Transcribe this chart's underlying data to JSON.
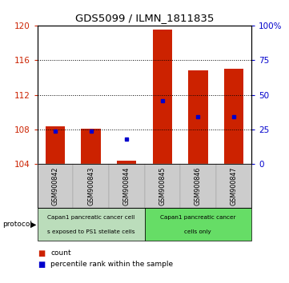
{
  "title": "GDS5099 / ILMN_1811835",
  "samples": [
    "GSM900842",
    "GSM900843",
    "GSM900844",
    "GSM900845",
    "GSM900846",
    "GSM900847"
  ],
  "bar_bottom": 104,
  "bar_tops": [
    108.4,
    108.1,
    104.4,
    119.5,
    114.8,
    115.0
  ],
  "percentile_values": [
    107.8,
    107.8,
    106.9,
    111.3,
    109.5,
    109.5
  ],
  "ylim_left": [
    104,
    120
  ],
  "ylim_right": [
    0,
    100
  ],
  "yticks_left": [
    104,
    108,
    112,
    116,
    120
  ],
  "yticks_right": [
    0,
    25,
    50,
    75,
    100
  ],
  "bar_color": "#cc2200",
  "percentile_color": "#0000cc",
  "bg_xticklabels": "#cccccc",
  "protocol_text1_line1": "Capan1 pancreatic cancer cell",
  "protocol_text1_line2": "s exposed to PS1 stellate cells",
  "protocol_text2_line1": "Capan1 pancreatic cancer",
  "protocol_text2_line2": "cells only",
  "protocol_bg1": "#bbddbb",
  "protocol_bg2": "#66dd66",
  "legend_count_color": "#cc2200",
  "legend_pct_color": "#0000cc",
  "bar_width": 0.55
}
